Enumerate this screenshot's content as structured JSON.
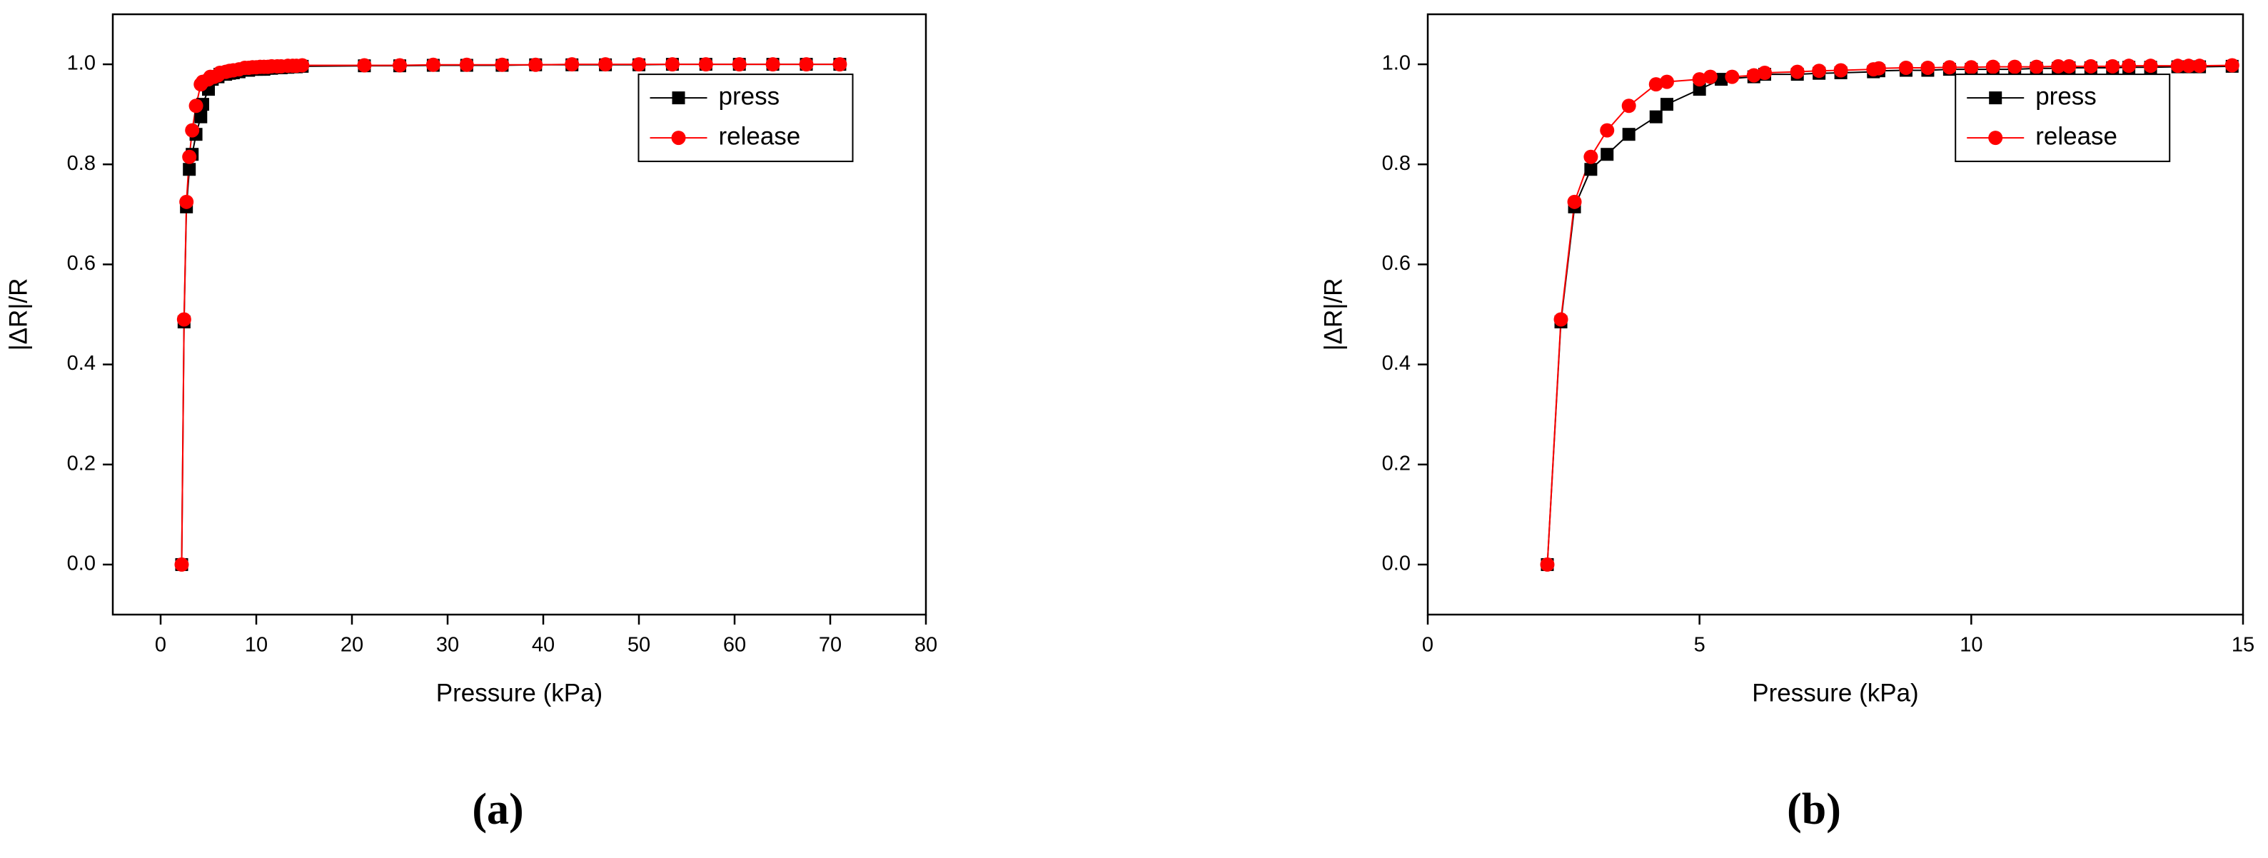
{
  "chart_data": [
    {
      "type": "scatter-line",
      "panel_label": "(a)",
      "x_label": "Pressure (kPa)",
      "y_label": "|ΔR|/R",
      "xlim": [
        -5,
        80
      ],
      "xticks": [
        0,
        10,
        20,
        30,
        40,
        50,
        60,
        70,
        80
      ],
      "ylim": [
        -0.1,
        1.1
      ],
      "yticks": [
        {
          "value": 0,
          "label": "0.0"
        },
        0.2,
        0.4,
        0.6,
        0.8,
        {
          "value": 1,
          "label": "1.0"
        }
      ],
      "legend_position": "upper right",
      "series": [
        {
          "name": "press",
          "color": "#000000",
          "marker": "square",
          "x": [
            2.2,
            2.45,
            2.7,
            3.0,
            3.3,
            3.7,
            4.2,
            4.4,
            5.0,
            5.4,
            6.0,
            6.2,
            6.8,
            7.2,
            7.6,
            8.2,
            8.8,
            9.2,
            9.6,
            10.0,
            10.4,
            10.8,
            11.2,
            11.6,
            12.2,
            12.6,
            13.3,
            13.8,
            14.2,
            14.8,
            21.3,
            25,
            28.5,
            32,
            35.7,
            39.2,
            43,
            46.5,
            50,
            53.5,
            57,
            60.5,
            64,
            67.5,
            71
          ],
          "values": [
            0,
            0.485,
            0.715,
            0.79,
            0.82,
            0.86,
            0.895,
            0.92,
            0.95,
            0.97,
            0.975,
            0.98,
            0.98,
            0.982,
            0.983,
            0.985,
            0.988,
            0.988,
            0.99,
            0.99,
            0.99,
            0.99,
            0.992,
            0.992,
            0.993,
            0.993,
            0.994,
            0.995,
            0.995,
            0.996,
            0.997,
            0.997,
            0.998,
            0.998,
            0.998,
            0.999,
            0.999,
            0.999,
            0.999,
            1.0,
            1.0,
            1.0,
            1.0,
            1.0,
            1.0
          ]
        },
        {
          "name": "release",
          "color": "#ff0000",
          "marker": "circle",
          "x": [
            2.2,
            2.45,
            2.7,
            3.0,
            3.3,
            3.7,
            4.2,
            4.4,
            5.0,
            5.2,
            5.6,
            6.0,
            6.2,
            6.8,
            7.2,
            7.6,
            8.2,
            8.8,
            9.2,
            9.6,
            10.0,
            10.4,
            10.8,
            11.2,
            11.6,
            12.2,
            12.6,
            13.3,
            13.8,
            14.2,
            14.8,
            21.3,
            25,
            28.5,
            32,
            35.7,
            39.2,
            43,
            46.5,
            50,
            53.5,
            57,
            60.5,
            64,
            67.5,
            71
          ],
          "values": [
            0,
            0.49,
            0.725,
            0.815,
            0.868,
            0.917,
            0.96,
            0.965,
            0.97,
            0.975,
            0.975,
            0.978,
            0.983,
            0.985,
            0.987,
            0.988,
            0.99,
            0.993,
            0.993,
            0.994,
            0.994,
            0.995,
            0.995,
            0.995,
            0.996,
            0.996,
            0.996,
            0.997,
            0.997,
            0.997,
            0.998,
            0.998,
            0.998,
            0.999,
            0.999,
            0.999,
            0.999,
            1.0,
            1.0,
            1.0,
            1.0,
            1.0,
            1.0,
            1.0,
            1.0,
            1.0
          ]
        }
      ]
    },
    {
      "type": "scatter-line",
      "panel_label": "(b)",
      "x_label": "Pressure (kPa)",
      "y_label": "|ΔR|/R",
      "xlim": [
        0,
        15
      ],
      "xticks": [
        0,
        5,
        10,
        15
      ],
      "ylim": [
        -0.1,
        1.1
      ],
      "yticks": [
        {
          "value": 0,
          "label": "0.0"
        },
        0.2,
        0.4,
        0.6,
        0.8,
        {
          "value": 1,
          "label": "1.0"
        }
      ],
      "legend_position": "upper right",
      "series": [
        {
          "name": "press",
          "color": "#000000",
          "marker": "square",
          "x": [
            2.2,
            2.45,
            2.7,
            3.0,
            3.3,
            3.7,
            4.2,
            4.4,
            5.0,
            5.4,
            6.0,
            6.2,
            6.8,
            7.2,
            7.6,
            8.2,
            8.3,
            8.8,
            9.2,
            9.6,
            10.0,
            10.4,
            10.8,
            11.2,
            11.6,
            11.8,
            12.2,
            12.6,
            12.9,
            13.3,
            13.8,
            14.0,
            14.2,
            14.8
          ],
          "values": [
            0,
            0.485,
            0.715,
            0.79,
            0.82,
            0.86,
            0.895,
            0.92,
            0.95,
            0.97,
            0.975,
            0.98,
            0.98,
            0.982,
            0.983,
            0.985,
            0.987,
            0.988,
            0.988,
            0.99,
            0.99,
            0.99,
            0.99,
            0.992,
            0.992,
            0.993,
            0.993,
            0.993,
            0.994,
            0.994,
            0.995,
            0.995,
            0.995,
            0.996
          ]
        },
        {
          "name": "release",
          "color": "#ff0000",
          "marker": "circle",
          "x": [
            2.2,
            2.45,
            2.7,
            3.0,
            3.3,
            3.7,
            4.2,
            4.4,
            5.0,
            5.2,
            5.6,
            6.0,
            6.2,
            6.8,
            7.2,
            7.6,
            8.2,
            8.3,
            8.8,
            9.2,
            9.6,
            10.0,
            10.4,
            10.8,
            11.2,
            11.6,
            11.8,
            12.2,
            12.6,
            12.9,
            13.3,
            13.8,
            14.0,
            14.2,
            14.8
          ],
          "values": [
            0,
            0.49,
            0.725,
            0.815,
            0.868,
            0.917,
            0.96,
            0.965,
            0.97,
            0.975,
            0.975,
            0.978,
            0.983,
            0.985,
            0.987,
            0.988,
            0.99,
            0.992,
            0.993,
            0.993,
            0.994,
            0.994,
            0.995,
            0.995,
            0.995,
            0.996,
            0.996,
            0.996,
            0.996,
            0.997,
            0.997,
            0.997,
            0.997,
            0.997,
            0.998
          ]
        }
      ]
    }
  ]
}
